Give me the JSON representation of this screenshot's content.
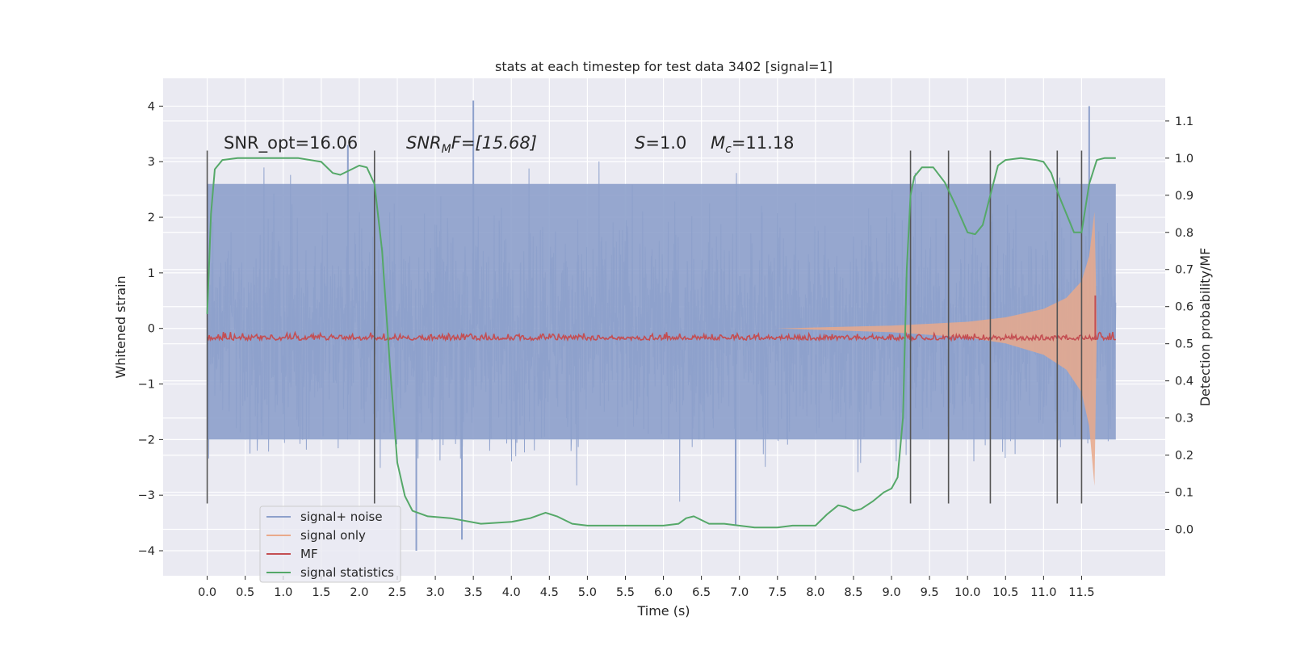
{
  "chart_data": {
    "type": "line",
    "title": "stats at each timestep for test data 3402 [signal=1]",
    "xlabel": "Time (s)",
    "ylabel": "Whitened strain",
    "y2label": "Detection probability/MF",
    "xlim": [
      -0.58,
      12.6
    ],
    "ylim": [
      -4.45,
      4.5
    ],
    "y2lim": [
      -0.125,
      1.215
    ],
    "x_ticks": [
      "0.0",
      "0.5",
      "1.0",
      "1.5",
      "2.0",
      "2.5",
      "3.0",
      "3.5",
      "4.0",
      "4.5",
      "5.0",
      "5.5",
      "6.0",
      "6.5",
      "7.0",
      "7.5",
      "8.0",
      "8.5",
      "9.0",
      "9.5",
      "10.0",
      "10.5",
      "11.0",
      "11.5"
    ],
    "y_ticks": [
      "−4",
      "−3",
      "−2",
      "−1",
      "0",
      "1",
      "2",
      "3",
      "4"
    ],
    "y2_ticks": [
      "0.0",
      "0.1",
      "0.2",
      "0.3",
      "0.4",
      "0.5",
      "0.6",
      "0.7",
      "0.8",
      "0.9",
      "1.0",
      "1.1"
    ],
    "grid": true,
    "legend_position": "lower-left",
    "annotations": {
      "snr_opt": "SNR_opt=16.06",
      "snr_mf_sym": "SNR",
      "snr_mf_sub": "M",
      "snr_mf_rest": "F=[15.68]",
      "s_sym": "S",
      "s_rest": "=1.0",
      "mc_sym": "M",
      "mc_sub": "c",
      "mc_rest": "=11.18"
    },
    "vlines": [
      0.0,
      2.2,
      9.25,
      9.75,
      10.3,
      11.18,
      11.5
    ],
    "vline_range": [
      -3.15,
      3.2
    ],
    "series": [
      {
        "name": "signal+ noise",
        "color": "#8da0cb",
        "x_range": [
          0.0,
          11.95
        ],
        "amplitude_band": [
          -2.0,
          2.6
        ],
        "spikes": [
          [
            3.5,
            4.1
          ],
          [
            11.6,
            4.0
          ],
          [
            3.35,
            -3.8
          ],
          [
            2.75,
            -4.0
          ],
          [
            6.95,
            -3.55
          ],
          [
            1.85,
            3.3
          ]
        ]
      },
      {
        "name": "signal only",
        "color": "#e9a98b",
        "envelope": [
          [
            7.5,
            0.0
          ],
          [
            9.0,
            0.05
          ],
          [
            10.0,
            0.12
          ],
          [
            10.5,
            0.2
          ],
          [
            11.0,
            0.35
          ],
          [
            11.3,
            0.55
          ],
          [
            11.5,
            0.85
          ],
          [
            11.6,
            1.3
          ],
          [
            11.67,
            2.1
          ],
          [
            11.7,
            0.0
          ]
        ]
      },
      {
        "name": "MF",
        "color": "#c44e52",
        "baseline": 0.51,
        "spike": [
          11.68,
          0.63
        ]
      },
      {
        "name": "signal statistics",
        "color": "#55a868",
        "x": [
          0.0,
          0.05,
          0.1,
          0.2,
          0.4,
          0.8,
          1.2,
          1.5,
          1.65,
          1.75,
          1.9,
          2.0,
          2.1,
          2.2,
          2.3,
          2.4,
          2.5,
          2.6,
          2.7,
          2.9,
          3.2,
          3.6,
          4.0,
          4.25,
          4.45,
          4.6,
          4.8,
          5.0,
          5.5,
          6.0,
          6.2,
          6.3,
          6.4,
          6.5,
          6.6,
          6.8,
          7.2,
          7.5,
          7.7,
          8.0,
          8.15,
          8.3,
          8.4,
          8.5,
          8.6,
          8.75,
          8.9,
          9.0,
          9.08,
          9.15,
          9.2,
          9.25,
          9.3,
          9.4,
          9.55,
          9.7,
          9.85,
          10.0,
          10.1,
          10.2,
          10.3,
          10.4,
          10.5,
          10.7,
          10.9,
          11.0,
          11.1,
          11.2,
          11.3,
          11.4,
          11.5,
          11.6,
          11.7,
          11.8,
          11.95
        ],
        "values": [
          0.58,
          0.85,
          0.97,
          0.995,
          1.0,
          1.0,
          1.0,
          0.99,
          0.96,
          0.955,
          0.97,
          0.98,
          0.975,
          0.93,
          0.75,
          0.45,
          0.18,
          0.09,
          0.05,
          0.035,
          0.03,
          0.015,
          0.02,
          0.03,
          0.045,
          0.035,
          0.015,
          0.01,
          0.01,
          0.01,
          0.015,
          0.03,
          0.035,
          0.025,
          0.015,
          0.015,
          0.005,
          0.005,
          0.01,
          0.01,
          0.04,
          0.065,
          0.06,
          0.05,
          0.055,
          0.075,
          0.1,
          0.11,
          0.14,
          0.3,
          0.7,
          0.9,
          0.95,
          0.975,
          0.975,
          0.935,
          0.87,
          0.8,
          0.795,
          0.82,
          0.9,
          0.98,
          0.995,
          1.0,
          0.995,
          0.99,
          0.96,
          0.9,
          0.85,
          0.8,
          0.8,
          0.93,
          0.995,
          1.0,
          1.0
        ]
      }
    ]
  }
}
